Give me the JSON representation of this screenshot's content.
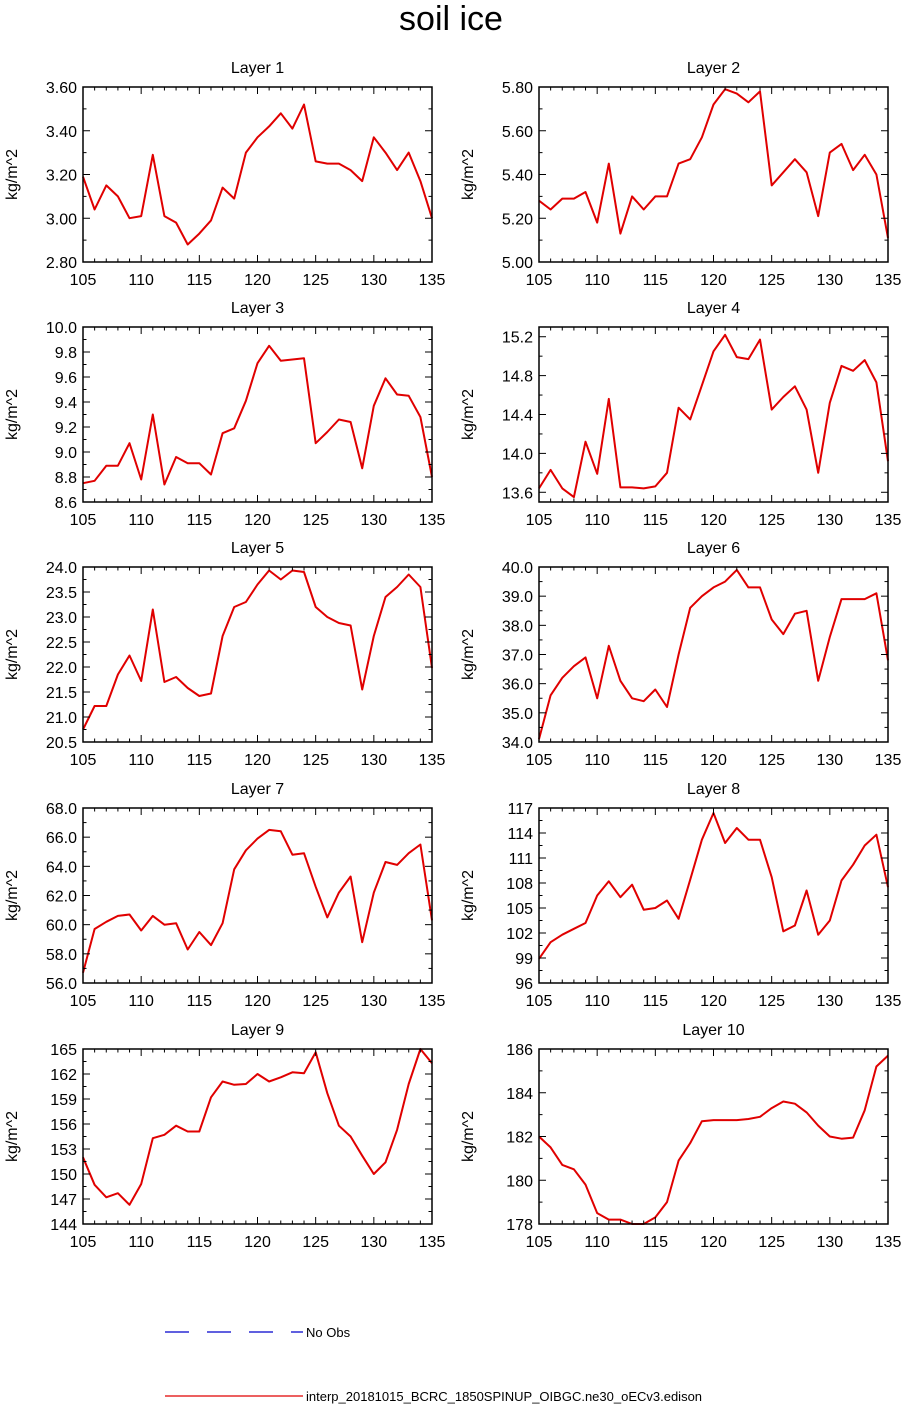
{
  "figure_title": "soil ice",
  "legend": {
    "no_obs_label": "No Obs",
    "model_label": "interp_20181015_BCRC_1850SPINUP_OIBGC.ne30_oECv3.edison",
    "no_obs_color": "#0000cc",
    "model_color": "#e00000"
  },
  "chart_data": [
    {
      "type": "line",
      "title": "Layer 1",
      "ylabel": "kg/m^2",
      "xlim": [
        105,
        135
      ],
      "xticks": [
        "105",
        "110",
        "115",
        "120",
        "125",
        "130",
        "135"
      ],
      "ylim": [
        2.8,
        3.6
      ],
      "yticks": [
        "2.80",
        "3.00",
        "3.20",
        "3.40",
        "3.60"
      ],
      "series": [
        {
          "color": "#e00000",
          "x": [
            105,
            106,
            107,
            108,
            109,
            110,
            111,
            112,
            113,
            114,
            115,
            116,
            117,
            118,
            119,
            120,
            121,
            122,
            123,
            124,
            125,
            126,
            127,
            128,
            129,
            130,
            131,
            132,
            133,
            134,
            135
          ],
          "values": [
            3.19,
            3.04,
            3.15,
            3.1,
            3.0,
            3.01,
            3.29,
            3.01,
            2.98,
            2.88,
            2.93,
            2.99,
            3.14,
            3.09,
            3.3,
            3.37,
            3.42,
            3.48,
            3.41,
            3.52,
            3.26,
            3.25,
            3.25,
            3.22,
            3.17,
            3.37,
            3.3,
            3.22,
            3.3,
            3.17,
            3.0
          ]
        }
      ]
    },
    {
      "type": "line",
      "title": "Layer 2",
      "ylabel": "kg/m^2",
      "xlim": [
        105,
        135
      ],
      "xticks": [
        "105",
        "110",
        "115",
        "120",
        "125",
        "130",
        "135"
      ],
      "ylim": [
        5.0,
        5.8
      ],
      "yticks": [
        "5.00",
        "5.20",
        "5.40",
        "5.60",
        "5.80"
      ],
      "series": [
        {
          "color": "#e00000",
          "x": [
            105,
            106,
            107,
            108,
            109,
            110,
            111,
            112,
            113,
            114,
            115,
            116,
            117,
            118,
            119,
            120,
            121,
            122,
            123,
            124,
            125,
            126,
            127,
            128,
            129,
            130,
            131,
            132,
            133,
            134,
            135
          ],
          "values": [
            5.28,
            5.24,
            5.29,
            5.29,
            5.32,
            5.18,
            5.45,
            5.13,
            5.3,
            5.24,
            5.3,
            5.3,
            5.45,
            5.47,
            5.57,
            5.72,
            5.79,
            5.77,
            5.73,
            5.78,
            5.35,
            5.41,
            5.47,
            5.41,
            5.21,
            5.5,
            5.54,
            5.42,
            5.49,
            5.4,
            5.11
          ]
        }
      ]
    },
    {
      "type": "line",
      "title": "Layer 3",
      "ylabel": "kg/m^2",
      "xlim": [
        105,
        135
      ],
      "xticks": [
        "105",
        "110",
        "115",
        "120",
        "125",
        "130",
        "135"
      ],
      "ylim": [
        8.6,
        10.0
      ],
      "yticks": [
        "8.6",
        "8.8",
        "9.0",
        "9.2",
        "9.4",
        "9.6",
        "9.8",
        "10.0"
      ],
      "series": [
        {
          "color": "#e00000",
          "x": [
            105,
            106,
            107,
            108,
            109,
            110,
            111,
            112,
            113,
            114,
            115,
            116,
            117,
            118,
            119,
            120,
            121,
            122,
            123,
            124,
            125,
            126,
            127,
            128,
            129,
            130,
            131,
            132,
            133,
            134,
            135
          ],
          "values": [
            8.75,
            8.77,
            8.89,
            8.89,
            9.07,
            8.78,
            9.3,
            8.74,
            8.96,
            8.91,
            8.91,
            8.82,
            9.15,
            9.19,
            9.41,
            9.71,
            9.85,
            9.73,
            9.74,
            9.75,
            9.07,
            9.16,
            9.26,
            9.24,
            8.87,
            9.37,
            9.59,
            9.46,
            9.45,
            9.28,
            8.8
          ]
        }
      ]
    },
    {
      "type": "line",
      "title": "Layer 4",
      "ylabel": "kg/m^2",
      "xlim": [
        105,
        135
      ],
      "xticks": [
        "105",
        "110",
        "115",
        "120",
        "125",
        "130",
        "135"
      ],
      "ylim": [
        13.5,
        15.3
      ],
      "yticks": [
        "13.6",
        "14.0",
        "14.4",
        "14.8",
        "15.2"
      ],
      "series": [
        {
          "color": "#e00000",
          "x": [
            105,
            106,
            107,
            108,
            109,
            110,
            111,
            112,
            113,
            114,
            115,
            116,
            117,
            118,
            119,
            120,
            121,
            122,
            123,
            124,
            125,
            126,
            127,
            128,
            129,
            130,
            131,
            132,
            133,
            134,
            135
          ],
          "values": [
            13.64,
            13.83,
            13.64,
            13.55,
            14.12,
            13.79,
            14.56,
            13.65,
            13.65,
            13.64,
            13.66,
            13.8,
            14.47,
            14.35,
            14.7,
            15.05,
            15.22,
            14.99,
            14.97,
            15.17,
            14.45,
            14.58,
            14.69,
            14.45,
            13.8,
            14.52,
            14.9,
            14.85,
            14.96,
            14.73,
            13.92
          ]
        }
      ]
    },
    {
      "type": "line",
      "title": "Layer 5",
      "ylabel": "kg/m^2",
      "xlim": [
        105,
        135
      ],
      "xticks": [
        "105",
        "110",
        "115",
        "120",
        "125",
        "130",
        "135"
      ],
      "ylim": [
        20.5,
        24.0
      ],
      "yticks": [
        "20.5",
        "21.0",
        "21.5",
        "22.0",
        "22.5",
        "23.0",
        "23.5",
        "24.0"
      ],
      "series": [
        {
          "color": "#e00000",
          "x": [
            105,
            106,
            107,
            108,
            109,
            110,
            111,
            112,
            113,
            114,
            115,
            116,
            117,
            118,
            119,
            120,
            121,
            122,
            123,
            124,
            125,
            126,
            127,
            128,
            129,
            130,
            131,
            132,
            133,
            134,
            135
          ],
          "values": [
            20.75,
            21.22,
            21.22,
            21.85,
            22.23,
            21.72,
            23.15,
            21.7,
            21.8,
            21.58,
            21.42,
            21.47,
            22.62,
            23.2,
            23.3,
            23.65,
            23.93,
            23.75,
            23.93,
            23.9,
            23.2,
            23.0,
            22.88,
            22.83,
            21.55,
            22.62,
            23.4,
            23.6,
            23.85,
            23.6,
            21.98
          ]
        }
      ]
    },
    {
      "type": "line",
      "title": "Layer 6",
      "ylabel": "kg/m^2",
      "xlim": [
        105,
        135
      ],
      "xticks": [
        "105",
        "110",
        "115",
        "120",
        "125",
        "130",
        "135"
      ],
      "ylim": [
        34.0,
        40.0
      ],
      "yticks": [
        "34.0",
        "35.0",
        "36.0",
        "37.0",
        "38.0",
        "39.0",
        "40.0"
      ],
      "series": [
        {
          "color": "#e00000",
          "x": [
            105,
            106,
            107,
            108,
            109,
            110,
            111,
            112,
            113,
            114,
            115,
            116,
            117,
            118,
            119,
            120,
            121,
            122,
            123,
            124,
            125,
            126,
            127,
            128,
            129,
            130,
            131,
            132,
            133,
            134,
            135
          ],
          "values": [
            34.1,
            35.6,
            36.2,
            36.6,
            36.9,
            35.5,
            37.3,
            36.1,
            35.5,
            35.4,
            35.8,
            35.2,
            37.0,
            38.6,
            39.0,
            39.3,
            39.5,
            39.9,
            39.3,
            39.3,
            38.2,
            37.7,
            38.4,
            38.5,
            36.1,
            37.6,
            38.9,
            38.9,
            38.9,
            39.1,
            36.8
          ]
        }
      ]
    },
    {
      "type": "line",
      "title": "Layer 7",
      "ylabel": "kg/m^2",
      "xlim": [
        105,
        135
      ],
      "xticks": [
        "105",
        "110",
        "115",
        "120",
        "125",
        "130",
        "135"
      ],
      "ylim": [
        56.0,
        68.0
      ],
      "yticks": [
        "56.0",
        "58.0",
        "60.0",
        "62.0",
        "64.0",
        "66.0",
        "68.0"
      ],
      "series": [
        {
          "color": "#e00000",
          "x": [
            105,
            106,
            107,
            108,
            109,
            110,
            111,
            112,
            113,
            114,
            115,
            116,
            117,
            118,
            119,
            120,
            121,
            122,
            123,
            124,
            125,
            126,
            127,
            128,
            129,
            130,
            131,
            132,
            133,
            134,
            135
          ],
          "values": [
            56.7,
            59.7,
            60.2,
            60.6,
            60.7,
            59.6,
            60.6,
            60.0,
            60.1,
            58.3,
            59.5,
            58.6,
            60.1,
            63.8,
            65.1,
            65.9,
            66.5,
            66.4,
            64.8,
            64.9,
            62.6,
            60.5,
            62.2,
            63.3,
            58.8,
            62.2,
            64.3,
            64.1,
            64.9,
            65.5,
            60.3
          ]
        }
      ]
    },
    {
      "type": "line",
      "title": "Layer 8",
      "ylabel": "kg/m^2",
      "xlim": [
        105,
        135
      ],
      "xticks": [
        "105",
        "110",
        "115",
        "120",
        "125",
        "130",
        "135"
      ],
      "ylim": [
        96,
        117
      ],
      "yticks": [
        "96",
        "99",
        "102",
        "105",
        "108",
        "111",
        "114",
        "117"
      ],
      "series": [
        {
          "color": "#e00000",
          "x": [
            105,
            106,
            107,
            108,
            109,
            110,
            111,
            112,
            113,
            114,
            115,
            116,
            117,
            118,
            119,
            120,
            121,
            122,
            123,
            124,
            125,
            126,
            127,
            128,
            129,
            130,
            131,
            132,
            133,
            134,
            135
          ],
          "values": [
            98.9,
            100.9,
            101.8,
            102.5,
            103.2,
            106.5,
            108.2,
            106.3,
            107.8,
            104.8,
            105.0,
            105.9,
            103.7,
            108.4,
            113.2,
            116.4,
            112.8,
            114.6,
            113.2,
            113.2,
            108.7,
            102.2,
            102.9,
            107.1,
            101.8,
            103.5,
            108.3,
            110.2,
            112.5,
            113.8,
            107.5
          ]
        }
      ]
    },
    {
      "type": "line",
      "title": "Layer 9",
      "ylabel": "kg/m^2",
      "xlim": [
        105,
        135
      ],
      "xticks": [
        "105",
        "110",
        "115",
        "120",
        "125",
        "130",
        "135"
      ],
      "ylim": [
        144,
        165
      ],
      "yticks": [
        "144",
        "147",
        "150",
        "153",
        "156",
        "159",
        "162",
        "165"
      ],
      "series": [
        {
          "color": "#e00000",
          "x": [
            105,
            106,
            107,
            108,
            109,
            110,
            111,
            112,
            113,
            114,
            115,
            116,
            117,
            118,
            119,
            120,
            121,
            122,
            123,
            124,
            125,
            126,
            127,
            128,
            129,
            130,
            131,
            132,
            133,
            134,
            135
          ],
          "values": [
            152.0,
            148.7,
            147.2,
            147.7,
            146.3,
            148.8,
            154.3,
            154.7,
            155.8,
            155.1,
            155.1,
            159.2,
            161.1,
            160.7,
            160.8,
            162.0,
            161.1,
            161.6,
            162.2,
            162.1,
            164.6,
            159.7,
            155.8,
            154.5,
            152.2,
            150.0,
            151.4,
            155.3,
            160.8,
            165.0,
            163.3
          ]
        }
      ]
    },
    {
      "type": "line",
      "title": "Layer 10",
      "ylabel": "kg/m^2",
      "xlim": [
        105,
        135
      ],
      "xticks": [
        "105",
        "110",
        "115",
        "120",
        "125",
        "130",
        "135"
      ],
      "ylim": [
        178,
        186
      ],
      "yticks": [
        "178",
        "180",
        "182",
        "184",
        "186"
      ],
      "series": [
        {
          "color": "#e00000",
          "x": [
            105,
            106,
            107,
            108,
            109,
            110,
            111,
            112,
            113,
            114,
            115,
            116,
            117,
            118,
            119,
            120,
            121,
            122,
            123,
            124,
            125,
            126,
            127,
            128,
            129,
            130,
            131,
            132,
            133,
            134,
            135
          ],
          "values": [
            182.0,
            181.5,
            180.7,
            180.5,
            179.8,
            178.5,
            178.2,
            178.2,
            178.0,
            178.0,
            178.3,
            179.0,
            180.9,
            181.7,
            182.7,
            182.75,
            182.75,
            182.75,
            182.8,
            182.9,
            183.3,
            183.6,
            183.5,
            183.1,
            182.5,
            182.0,
            181.9,
            181.95,
            183.2,
            185.2,
            185.7
          ]
        }
      ]
    }
  ]
}
